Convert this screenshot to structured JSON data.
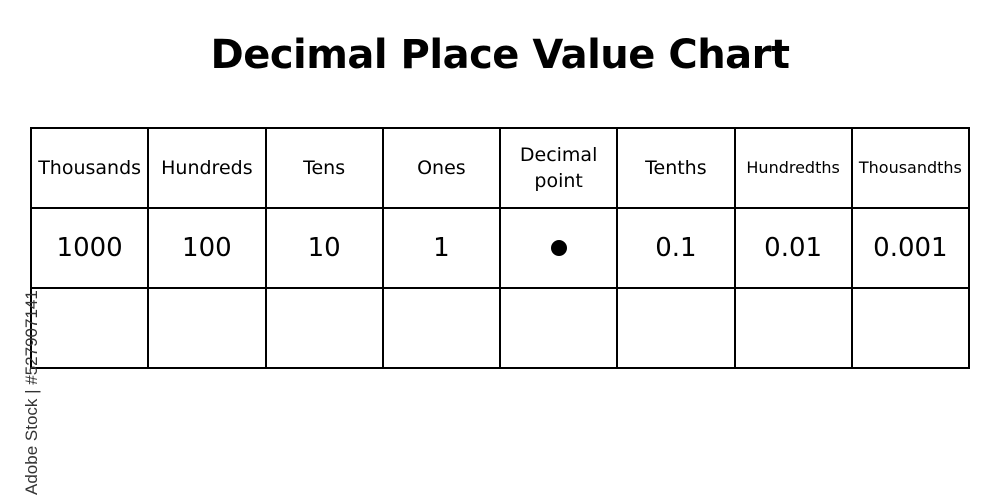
{
  "title": "Decimal Place Value Chart",
  "headers": [
    "Thousands",
    "Hundreds",
    "Tens",
    "Ones",
    "Decimal point",
    "Tenths",
    "Hundredths",
    "Thousandths"
  ],
  "values": [
    "1000",
    "100",
    "10",
    "1",
    "●",
    "0.1",
    "0.01",
    "0.001"
  ],
  "watermark": "Adobe Stock | #527907141"
}
